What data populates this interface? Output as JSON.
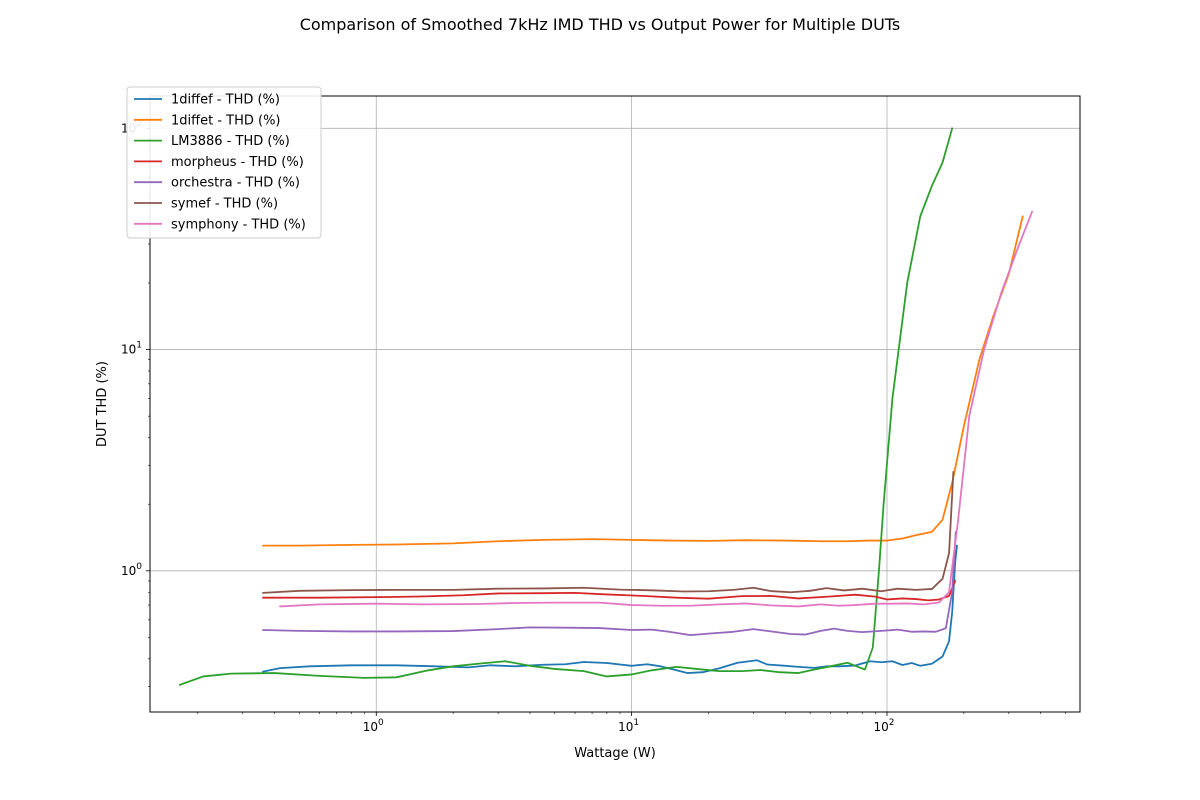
{
  "chart_data": {
    "type": "line",
    "title": "Comparison of Smoothed 7kHz IMD THD vs Output Power for Multiple DUTs",
    "xlabel": "Wattage (W)",
    "ylabel": "DUT THD (%)",
    "xscale": "log",
    "yscale": "log",
    "xlim": [
      0.13,
      570
    ],
    "ylim": [
      0.23,
      140
    ],
    "xticks": [
      {
        "value": 1,
        "base": "10",
        "exp": "0"
      },
      {
        "value": 10,
        "base": "10",
        "exp": "1"
      },
      {
        "value": 100,
        "base": "10",
        "exp": "2"
      }
    ],
    "yticks": [
      {
        "value": 1,
        "base": "10",
        "exp": "0"
      },
      {
        "value": 10,
        "base": "10",
        "exp": "1"
      },
      {
        "value": 100,
        "base": "10",
        "exp": "2"
      }
    ],
    "grid": true,
    "legend_position": "top-left",
    "series": [
      {
        "name": "1diffef - THD (%)",
        "color": "#1f77b4",
        "points": [
          [
            0.36,
            0.35
          ],
          [
            0.42,
            0.363
          ],
          [
            0.55,
            0.37
          ],
          [
            0.8,
            0.374
          ],
          [
            1.2,
            0.374
          ],
          [
            1.7,
            0.37
          ],
          [
            2.3,
            0.366
          ],
          [
            2.8,
            0.374
          ],
          [
            3.5,
            0.37
          ],
          [
            4.5,
            0.376
          ],
          [
            5.5,
            0.378
          ],
          [
            6.5,
            0.387
          ],
          [
            8,
            0.383
          ],
          [
            10,
            0.372
          ],
          [
            11.5,
            0.378
          ],
          [
            13,
            0.37
          ],
          [
            15,
            0.355
          ],
          [
            16.5,
            0.345
          ],
          [
            19,
            0.348
          ],
          [
            22,
            0.362
          ],
          [
            26,
            0.384
          ],
          [
            31,
            0.394
          ],
          [
            34,
            0.377
          ],
          [
            40,
            0.372
          ],
          [
            45,
            0.368
          ],
          [
            52,
            0.364
          ],
          [
            58,
            0.37
          ],
          [
            65,
            0.37
          ],
          [
            75,
            0.373
          ],
          [
            86,
            0.39
          ],
          [
            95,
            0.386
          ],
          [
            105,
            0.39
          ],
          [
            115,
            0.375
          ],
          [
            125,
            0.383
          ],
          [
            135,
            0.372
          ],
          [
            150,
            0.38
          ],
          [
            165,
            0.41
          ],
          [
            175,
            0.48
          ],
          [
            180,
            0.65
          ],
          [
            185,
            1.1
          ],
          [
            188,
            1.3
          ]
        ]
      },
      {
        "name": "1diffet - THD (%)",
        "color": "#ff7f0e",
        "points": [
          [
            0.36,
            1.3
          ],
          [
            0.5,
            1.3
          ],
          [
            0.8,
            1.31
          ],
          [
            1.2,
            1.315
          ],
          [
            2,
            1.33
          ],
          [
            3,
            1.36
          ],
          [
            4.5,
            1.38
          ],
          [
            7,
            1.39
          ],
          [
            10,
            1.38
          ],
          [
            14,
            1.37
          ],
          [
            20,
            1.365
          ],
          [
            28,
            1.375
          ],
          [
            40,
            1.37
          ],
          [
            55,
            1.36
          ],
          [
            70,
            1.36
          ],
          [
            85,
            1.37
          ],
          [
            100,
            1.37
          ],
          [
            115,
            1.4
          ],
          [
            130,
            1.45
          ],
          [
            150,
            1.5
          ],
          [
            165,
            1.7
          ],
          [
            180,
            2.5
          ],
          [
            200,
            4.5
          ],
          [
            230,
            9
          ],
          [
            260,
            14
          ],
          [
            300,
            22
          ],
          [
            340,
            40
          ]
        ]
      },
      {
        "name": "LM3886 - THD (%)",
        "color": "#2ca02c",
        "points": [
          [
            0.17,
            0.305
          ],
          [
            0.21,
            0.333
          ],
          [
            0.27,
            0.343
          ],
          [
            0.4,
            0.345
          ],
          [
            0.6,
            0.335
          ],
          [
            0.9,
            0.328
          ],
          [
            1.2,
            0.33
          ],
          [
            1.6,
            0.355
          ],
          [
            2,
            0.37
          ],
          [
            2.5,
            0.38
          ],
          [
            3.2,
            0.39
          ],
          [
            4,
            0.372
          ],
          [
            5,
            0.36
          ],
          [
            6.5,
            0.352
          ],
          [
            8,
            0.333
          ],
          [
            10,
            0.34
          ],
          [
            12,
            0.355
          ],
          [
            15,
            0.368
          ],
          [
            18,
            0.36
          ],
          [
            22,
            0.352
          ],
          [
            27,
            0.352
          ],
          [
            32,
            0.356
          ],
          [
            38,
            0.348
          ],
          [
            45,
            0.345
          ],
          [
            52,
            0.358
          ],
          [
            60,
            0.37
          ],
          [
            70,
            0.384
          ],
          [
            76,
            0.37
          ],
          [
            82,
            0.358
          ],
          [
            88,
            0.45
          ],
          [
            93,
            1
          ],
          [
            97,
            2
          ],
          [
            105,
            6
          ],
          [
            120,
            20
          ],
          [
            135,
            40
          ],
          [
            150,
            55
          ],
          [
            165,
            70
          ],
          [
            180,
            100
          ]
        ]
      },
      {
        "name": "morpheus - THD (%)",
        "color": "#d62728",
        "points": [
          [
            0.36,
            0.756
          ],
          [
            0.6,
            0.756
          ],
          [
            1,
            0.76
          ],
          [
            1.5,
            0.765
          ],
          [
            2.2,
            0.775
          ],
          [
            3,
            0.79
          ],
          [
            4.5,
            0.792
          ],
          [
            6,
            0.795
          ],
          [
            8,
            0.782
          ],
          [
            11,
            0.77
          ],
          [
            15,
            0.756
          ],
          [
            20,
            0.748
          ],
          [
            27,
            0.768
          ],
          [
            35,
            0.77
          ],
          [
            45,
            0.75
          ],
          [
            60,
            0.765
          ],
          [
            75,
            0.78
          ],
          [
            90,
            0.764
          ],
          [
            100,
            0.742
          ],
          [
            115,
            0.75
          ],
          [
            130,
            0.745
          ],
          [
            145,
            0.735
          ],
          [
            160,
            0.742
          ],
          [
            175,
            0.77
          ],
          [
            185,
            0.9
          ]
        ]
      },
      {
        "name": "orchestra - THD (%)",
        "color": "#9467bd",
        "points": [
          [
            0.36,
            0.54
          ],
          [
            0.5,
            0.535
          ],
          [
            0.8,
            0.532
          ],
          [
            1.2,
            0.532
          ],
          [
            2,
            0.534
          ],
          [
            3,
            0.545
          ],
          [
            4,
            0.555
          ],
          [
            5.5,
            0.553
          ],
          [
            7.5,
            0.551
          ],
          [
            10,
            0.54
          ],
          [
            12,
            0.542
          ],
          [
            14,
            0.53
          ],
          [
            17,
            0.512
          ],
          [
            20,
            0.52
          ],
          [
            25,
            0.53
          ],
          [
            30,
            0.545
          ],
          [
            36,
            0.53
          ],
          [
            42,
            0.518
          ],
          [
            48,
            0.515
          ],
          [
            55,
            0.535
          ],
          [
            62,
            0.548
          ],
          [
            70,
            0.535
          ],
          [
            80,
            0.528
          ],
          [
            95,
            0.535
          ],
          [
            110,
            0.542
          ],
          [
            125,
            0.53
          ],
          [
            140,
            0.532
          ],
          [
            155,
            0.53
          ],
          [
            170,
            0.55
          ],
          [
            180,
            0.8
          ],
          [
            186,
            1.5
          ]
        ]
      },
      {
        "name": "symef - THD (%)",
        "color": "#8c564b",
        "points": [
          [
            0.36,
            0.795
          ],
          [
            0.5,
            0.812
          ],
          [
            0.8,
            0.818
          ],
          [
            1.2,
            0.82
          ],
          [
            2,
            0.82
          ],
          [
            3,
            0.83
          ],
          [
            4.5,
            0.832
          ],
          [
            6.5,
            0.838
          ],
          [
            9,
            0.822
          ],
          [
            12,
            0.816
          ],
          [
            16,
            0.806
          ],
          [
            20,
            0.808
          ],
          [
            25,
            0.82
          ],
          [
            30,
            0.838
          ],
          [
            35,
            0.81
          ],
          [
            42,
            0.8
          ],
          [
            50,
            0.812
          ],
          [
            58,
            0.835
          ],
          [
            68,
            0.815
          ],
          [
            80,
            0.83
          ],
          [
            95,
            0.808
          ],
          [
            110,
            0.83
          ],
          [
            130,
            0.82
          ],
          [
            150,
            0.828
          ],
          [
            165,
            0.92
          ],
          [
            175,
            1.2
          ],
          [
            182,
            2.8
          ]
        ]
      },
      {
        "name": "symphony - THD (%)",
        "color": "#e377c2",
        "points": [
          [
            0.42,
            0.69
          ],
          [
            0.6,
            0.705
          ],
          [
            1,
            0.71
          ],
          [
            1.5,
            0.705
          ],
          [
            2.5,
            0.708
          ],
          [
            3.5,
            0.715
          ],
          [
            5,
            0.718
          ],
          [
            7.5,
            0.718
          ],
          [
            10,
            0.7
          ],
          [
            13,
            0.695
          ],
          [
            17,
            0.695
          ],
          [
            22,
            0.705
          ],
          [
            28,
            0.712
          ],
          [
            35,
            0.698
          ],
          [
            45,
            0.69
          ],
          [
            55,
            0.705
          ],
          [
            65,
            0.695
          ],
          [
            75,
            0.7
          ],
          [
            90,
            0.71
          ],
          [
            105,
            0.71
          ],
          [
            120,
            0.712
          ],
          [
            140,
            0.705
          ],
          [
            160,
            0.72
          ],
          [
            175,
            0.8
          ],
          [
            190,
            1.7
          ],
          [
            210,
            5
          ],
          [
            240,
            10
          ],
          [
            280,
            18
          ],
          [
            330,
            30
          ],
          [
            370,
            42
          ]
        ]
      }
    ]
  }
}
